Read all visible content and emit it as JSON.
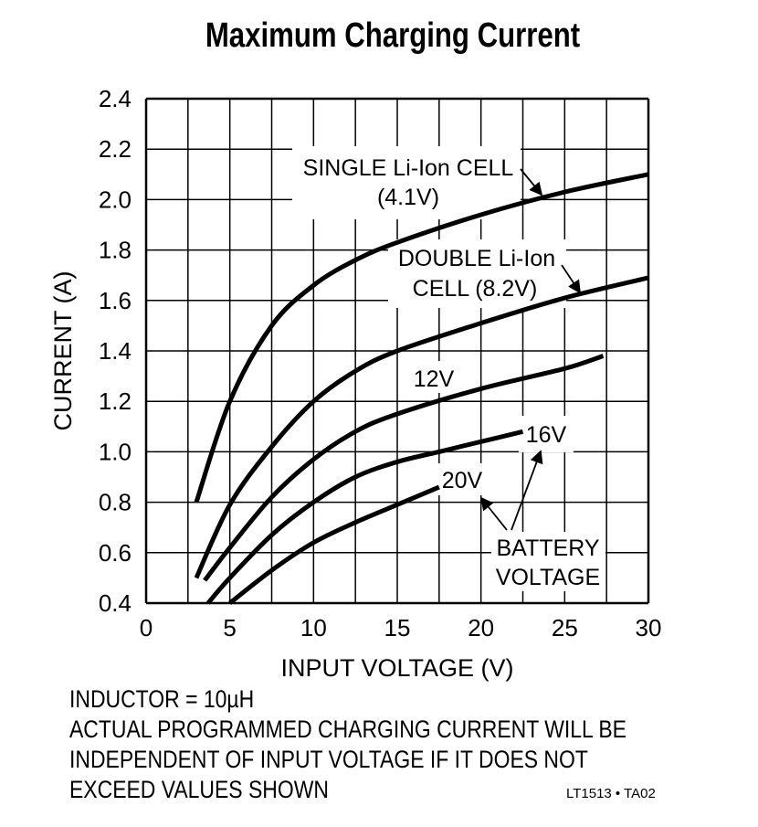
{
  "chart_data": {
    "type": "line",
    "title": "Maximum Charging Current",
    "xlabel": "INPUT VOLTAGE (V)",
    "ylabel": "CURRENT (A)",
    "xlim": [
      0,
      30
    ],
    "ylim": [
      0.4,
      2.4
    ],
    "xticks": [
      "0",
      "5",
      "10",
      "15",
      "20",
      "25",
      "30"
    ],
    "yticks": [
      "0.4",
      "0.6",
      "0.8",
      "1.0",
      "1.2",
      "1.4",
      "1.6",
      "1.8",
      "2.0",
      "2.2",
      "2.4"
    ],
    "grid": true,
    "series": [
      {
        "name": "SINGLE Li-Ion CELL (4.1V)",
        "x": [
          3,
          5,
          7.5,
          10,
          12.5,
          15,
          20,
          25,
          30
        ],
        "y": [
          0.8,
          1.2,
          1.5,
          1.66,
          1.76,
          1.83,
          1.94,
          2.03,
          2.1
        ]
      },
      {
        "name": "DOUBLE Li-Ion CELL (8.2V)",
        "x": [
          3,
          5,
          7.5,
          10,
          12.5,
          15,
          20,
          25,
          30
        ],
        "y": [
          0.5,
          0.79,
          1.02,
          1.2,
          1.32,
          1.4,
          1.51,
          1.61,
          1.69
        ]
      },
      {
        "name": "12V",
        "x": [
          3.5,
          5,
          7.5,
          10,
          12.5,
          15,
          20,
          25,
          27.3
        ],
        "y": [
          0.49,
          0.62,
          0.82,
          0.97,
          1.08,
          1.15,
          1.25,
          1.33,
          1.38
        ]
      },
      {
        "name": "16V",
        "x": [
          3.7,
          5,
          7.5,
          10,
          12.5,
          15,
          17.5,
          20,
          22.5
        ],
        "y": [
          0.4,
          0.5,
          0.67,
          0.8,
          0.9,
          0.96,
          1.0,
          1.04,
          1.08
        ]
      },
      {
        "name": "20V",
        "x": [
          5,
          7.5,
          10,
          12.5,
          15,
          17.5
        ],
        "y": [
          0.4,
          0.53,
          0.64,
          0.72,
          0.79,
          0.86
        ]
      }
    ],
    "annotations": {
      "single_line1": "SINGLE Li-Ion CELL",
      "single_line2": "(4.1V)",
      "double_line1": "DOUBLE Li-Ion",
      "double_line2": "CELL (8.2V)",
      "v12": "12V",
      "v16": "16V",
      "v20": "20V",
      "battery1": "BATTERY",
      "battery2": "VOLTAGE"
    }
  },
  "notes": [
    "INDUCTOR = 10µH",
    "ACTUAL PROGRAMMED CHARGING CURRENT WILL BE",
    "INDEPENDENT OF INPUT VOLTAGE IF IT DOES NOT",
    "EXCEED VALUES SHOWN"
  ],
  "code": "LT1513 • TA02"
}
